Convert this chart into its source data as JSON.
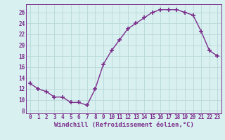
{
  "x": [
    0,
    1,
    2,
    3,
    4,
    5,
    6,
    7,
    8,
    9,
    10,
    11,
    12,
    13,
    14,
    15,
    16,
    17,
    18,
    19,
    20,
    21,
    22,
    23
  ],
  "y": [
    13,
    12,
    11.5,
    10.5,
    10.5,
    9.5,
    9.5,
    9,
    12,
    16.5,
    19,
    21,
    23,
    24,
    25,
    26,
    26.5,
    26.5,
    26.5,
    26,
    25.5,
    22.5,
    19,
    18
  ],
  "line_color": "#7b2d8b",
  "marker": "+",
  "marker_size": 4,
  "marker_linewidth": 1.2,
  "line_width": 1.0,
  "bg_color": "#d8f0f0",
  "grid_color": "#b8d8d8",
  "xlabel": "Windchill (Refroidissement éolien,°C)",
  "xlabel_fontsize": 6.5,
  "tick_fontsize": 5.5,
  "xtick_labels": [
    "0",
    "1",
    "2",
    "3",
    "4",
    "5",
    "6",
    "7",
    "8",
    "9",
    "10",
    "11",
    "12",
    "13",
    "14",
    "15",
    "16",
    "17",
    "18",
    "19",
    "20",
    "21",
    "22",
    "23"
  ],
  "ytick_values": [
    8,
    10,
    12,
    14,
    16,
    18,
    20,
    22,
    24,
    26
  ],
  "xlim": [
    -0.5,
    23.5
  ],
  "ylim": [
    7.5,
    27.5
  ]
}
